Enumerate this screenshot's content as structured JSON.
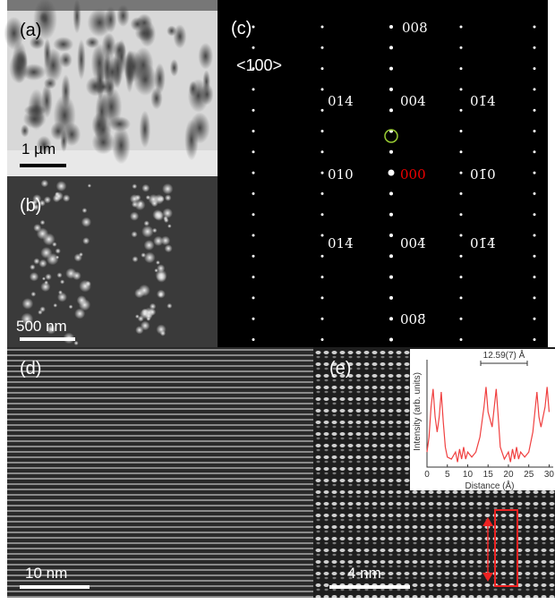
{
  "panels": {
    "a": {
      "label": "(a)",
      "scale_bar": "1 µm"
    },
    "b": {
      "label": "(b)",
      "scale_bar": "500 nm"
    },
    "c": {
      "label": "(c)",
      "zone_axis": "<100>",
      "spots": [
        "008",
        "014",
        "004",
        "01̄4",
        "010",
        "000",
        "01̄0",
        "014̄",
        "004̄",
        "01̄4̄",
        "008̄"
      ]
    },
    "d": {
      "label": "(d)",
      "scale_bar": "10 nm"
    },
    "e": {
      "label": "(e)",
      "scale_bar": "4 nm"
    }
  },
  "inset_chart": {
    "type": "line",
    "xlabel": "Distance (Å)",
    "ylabel": "Intensity (arb. units)",
    "annotation": "12.59(7) Å",
    "color": "#f04040",
    "x": [
      0,
      0.5,
      1,
      1.5,
      2,
      2.5,
      3,
      3.5,
      4,
      4.5,
      5,
      6,
      7,
      7.5,
      8,
      8.5,
      9,
      9.5,
      10,
      11,
      12,
      13,
      14,
      14.5,
      15,
      16,
      17,
      17.5,
      18,
      19,
      20,
      20.5,
      21,
      21.5,
      22,
      22.5,
      23,
      24,
      25,
      26,
      27,
      27.5,
      28,
      29,
      29.5,
      30
    ],
    "values": [
      0.15,
      0.3,
      0.6,
      0.78,
      0.5,
      0.35,
      0.5,
      0.75,
      0.45,
      0.2,
      0.1,
      0.08,
      0.15,
      0.05,
      0.18,
      0.08,
      0.2,
      0.08,
      0.15,
      0.1,
      0.15,
      0.3,
      0.6,
      0.8,
      0.55,
      0.4,
      0.78,
      0.5,
      0.2,
      0.08,
      0.15,
      0.05,
      0.18,
      0.08,
      0.2,
      0.08,
      0.15,
      0.1,
      0.15,
      0.35,
      0.75,
      0.5,
      0.4,
      0.6,
      0.8,
      0.55
    ],
    "xlim": [
      0,
      31
    ],
    "ylim": [
      0,
      1
    ],
    "xticks": [
      0,
      5,
      10,
      15,
      20,
      25,
      30
    ]
  }
}
